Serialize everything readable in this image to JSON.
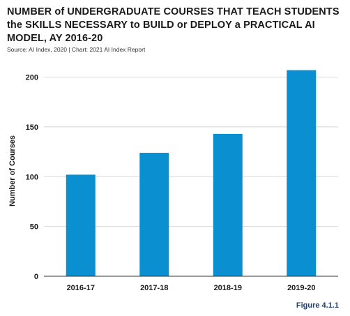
{
  "title_lines": [
    "NUMBER of UNDERGRADUATE COURSES THAT TEACH STUDENTS",
    "the SKILLS NECESSARY to BUILD or DEPLOY a PRACTICAL AI",
    "MODEL, AY 2016-20"
  ],
  "source": "Source: AI Index, 2020 | Chart: 2021 AI Index Report",
  "figure_label": "Figure 4.1.1",
  "colors": {
    "bar": "#0a8fd0",
    "grid": "#d8d8d8",
    "axis": "#333333"
  },
  "chart_data": {
    "type": "bar",
    "title": "NUMBER of UNDERGRADUATE COURSES THAT TEACH STUDENTS the SKILLS NECESSARY to BUILD or DEPLOY a PRACTICAL AI MODEL, AY 2016-20",
    "categories": [
      "2016-17",
      "2017-18",
      "2018-19",
      "2019-20"
    ],
    "values": [
      102,
      124,
      143,
      207
    ],
    "xlabel": "",
    "ylabel": "Number of Courses",
    "ylim": [
      0,
      220
    ],
    "yticks": [
      0,
      50,
      100,
      150,
      200
    ],
    "grid": true,
    "legend": "none"
  }
}
